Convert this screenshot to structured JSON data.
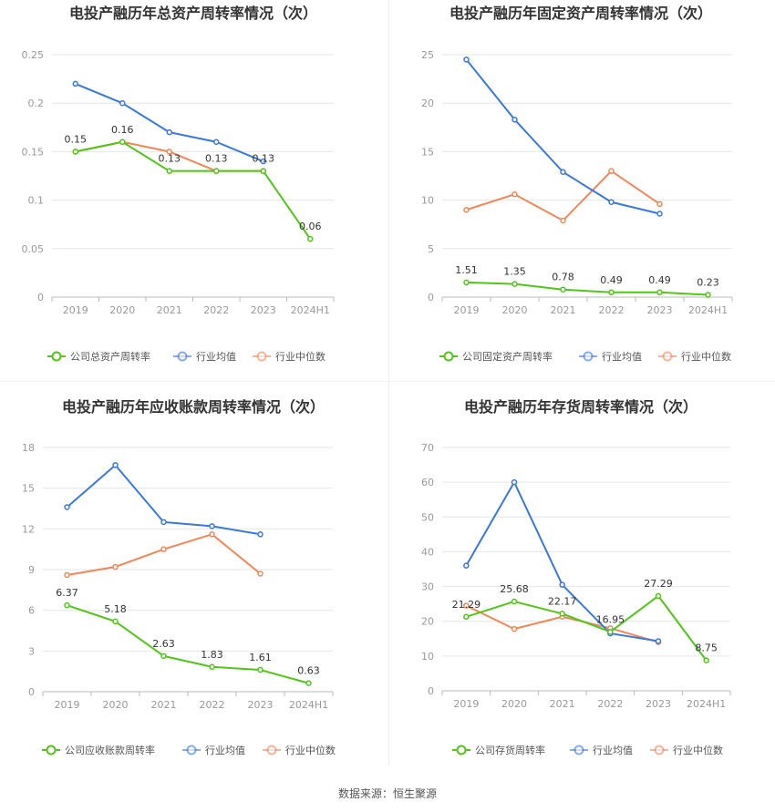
{
  "colors": {
    "company": "#52c41a",
    "avg": "#3a78dc",
    "median": "#f0875a",
    "grid": "#e6e6e6",
    "axis": "#bbbbbb"
  },
  "source": "数据来源：恒生聚源",
  "legend": {
    "avg": "行业均值",
    "median": "行业中位数"
  },
  "chart_data": [
    {
      "type": "line",
      "title": "电投产融历年总资产周转率情况（次）",
      "categories": [
        "2019",
        "2020",
        "2021",
        "2022",
        "2023",
        "2024H1"
      ],
      "ylim": [
        0,
        0.25
      ],
      "yticks": [
        "0",
        "0.05",
        "0.1",
        "0.15",
        "0.2",
        "0.25"
      ],
      "series": [
        {
          "name": "公司总资产周转率",
          "key": "company",
          "values": [
            0.15,
            0.16,
            0.13,
            0.13,
            0.13,
            0.06
          ],
          "labels": [
            "0.15",
            "0.16",
            "0.13",
            "0.13",
            "0.13",
            "0.06"
          ]
        },
        {
          "name": "行业均值",
          "key": "avg",
          "values": [
            0.22,
            0.2,
            0.17,
            0.16,
            0.14,
            null
          ]
        },
        {
          "name": "行业中位数",
          "key": "median",
          "values": [
            0.15,
            0.16,
            0.15,
            0.13,
            0.13,
            null
          ]
        }
      ],
      "grid": true,
      "legend_position": "bottom"
    },
    {
      "type": "line",
      "title": "电投产融历年固定资产周转率情况（次）",
      "categories": [
        "2019",
        "2020",
        "2021",
        "2022",
        "2023",
        "2024H1"
      ],
      "ylim": [
        0,
        25
      ],
      "yticks": [
        "0",
        "5",
        "10",
        "15",
        "20",
        "25"
      ],
      "series": [
        {
          "name": "公司固定资产周转率",
          "key": "company",
          "values": [
            1.51,
            1.35,
            0.78,
            0.49,
            0.49,
            0.23
          ],
          "labels": [
            "1.51",
            "1.35",
            "0.78",
            "0.49",
            "0.49",
            "0.23"
          ]
        },
        {
          "name": "行业均值",
          "key": "avg",
          "values": [
            24.5,
            18.3,
            12.9,
            9.8,
            8.6,
            null
          ]
        },
        {
          "name": "行业中位数",
          "key": "median",
          "values": [
            9.0,
            10.6,
            7.9,
            13.0,
            9.6,
            null
          ]
        }
      ],
      "grid": true,
      "legend_position": "bottom"
    },
    {
      "type": "line",
      "title": "电投产融历年应收账款周转率情况（次）",
      "categories": [
        "2019",
        "2020",
        "2021",
        "2022",
        "2023",
        "2024H1"
      ],
      "ylim": [
        0,
        18
      ],
      "yticks": [
        "0",
        "3",
        "6",
        "9",
        "12",
        "15",
        "18"
      ],
      "series": [
        {
          "name": "公司应收账款周转率",
          "key": "company",
          "values": [
            6.37,
            5.18,
            2.63,
            1.83,
            1.61,
            0.63
          ],
          "labels": [
            "6.37",
            "5.18",
            "2.63",
            "1.83",
            "1.61",
            "0.63"
          ]
        },
        {
          "name": "行业均值",
          "key": "avg",
          "values": [
            13.6,
            16.7,
            12.5,
            12.2,
            11.6,
            null
          ]
        },
        {
          "name": "行业中位数",
          "key": "median",
          "values": [
            8.6,
            9.2,
            10.5,
            11.6,
            8.7,
            null
          ]
        }
      ],
      "grid": true,
      "legend_position": "bottom"
    },
    {
      "type": "line",
      "title": "电投产融历年存货周转率情况（次）",
      "categories": [
        "2019",
        "2020",
        "2021",
        "2022",
        "2023",
        "2024H1"
      ],
      "ylim": [
        0,
        70
      ],
      "yticks": [
        "0",
        "10",
        "20",
        "30",
        "40",
        "50",
        "60",
        "70"
      ],
      "series": [
        {
          "name": "公司存货周转率",
          "key": "company",
          "values": [
            21.29,
            25.68,
            22.17,
            16.95,
            27.29,
            8.75
          ],
          "labels": [
            "21.29",
            "25.68",
            "22.17",
            "16.95",
            "27.29",
            "8.75"
          ]
        },
        {
          "name": "行业均值",
          "key": "avg",
          "values": [
            36.0,
            60.0,
            30.5,
            16.5,
            14.3,
            null
          ]
        },
        {
          "name": "行业中位数",
          "key": "median",
          "values": [
            24.5,
            17.8,
            21.3,
            18.0,
            14.0,
            null
          ]
        }
      ],
      "grid": true,
      "legend_position": "bottom"
    }
  ]
}
